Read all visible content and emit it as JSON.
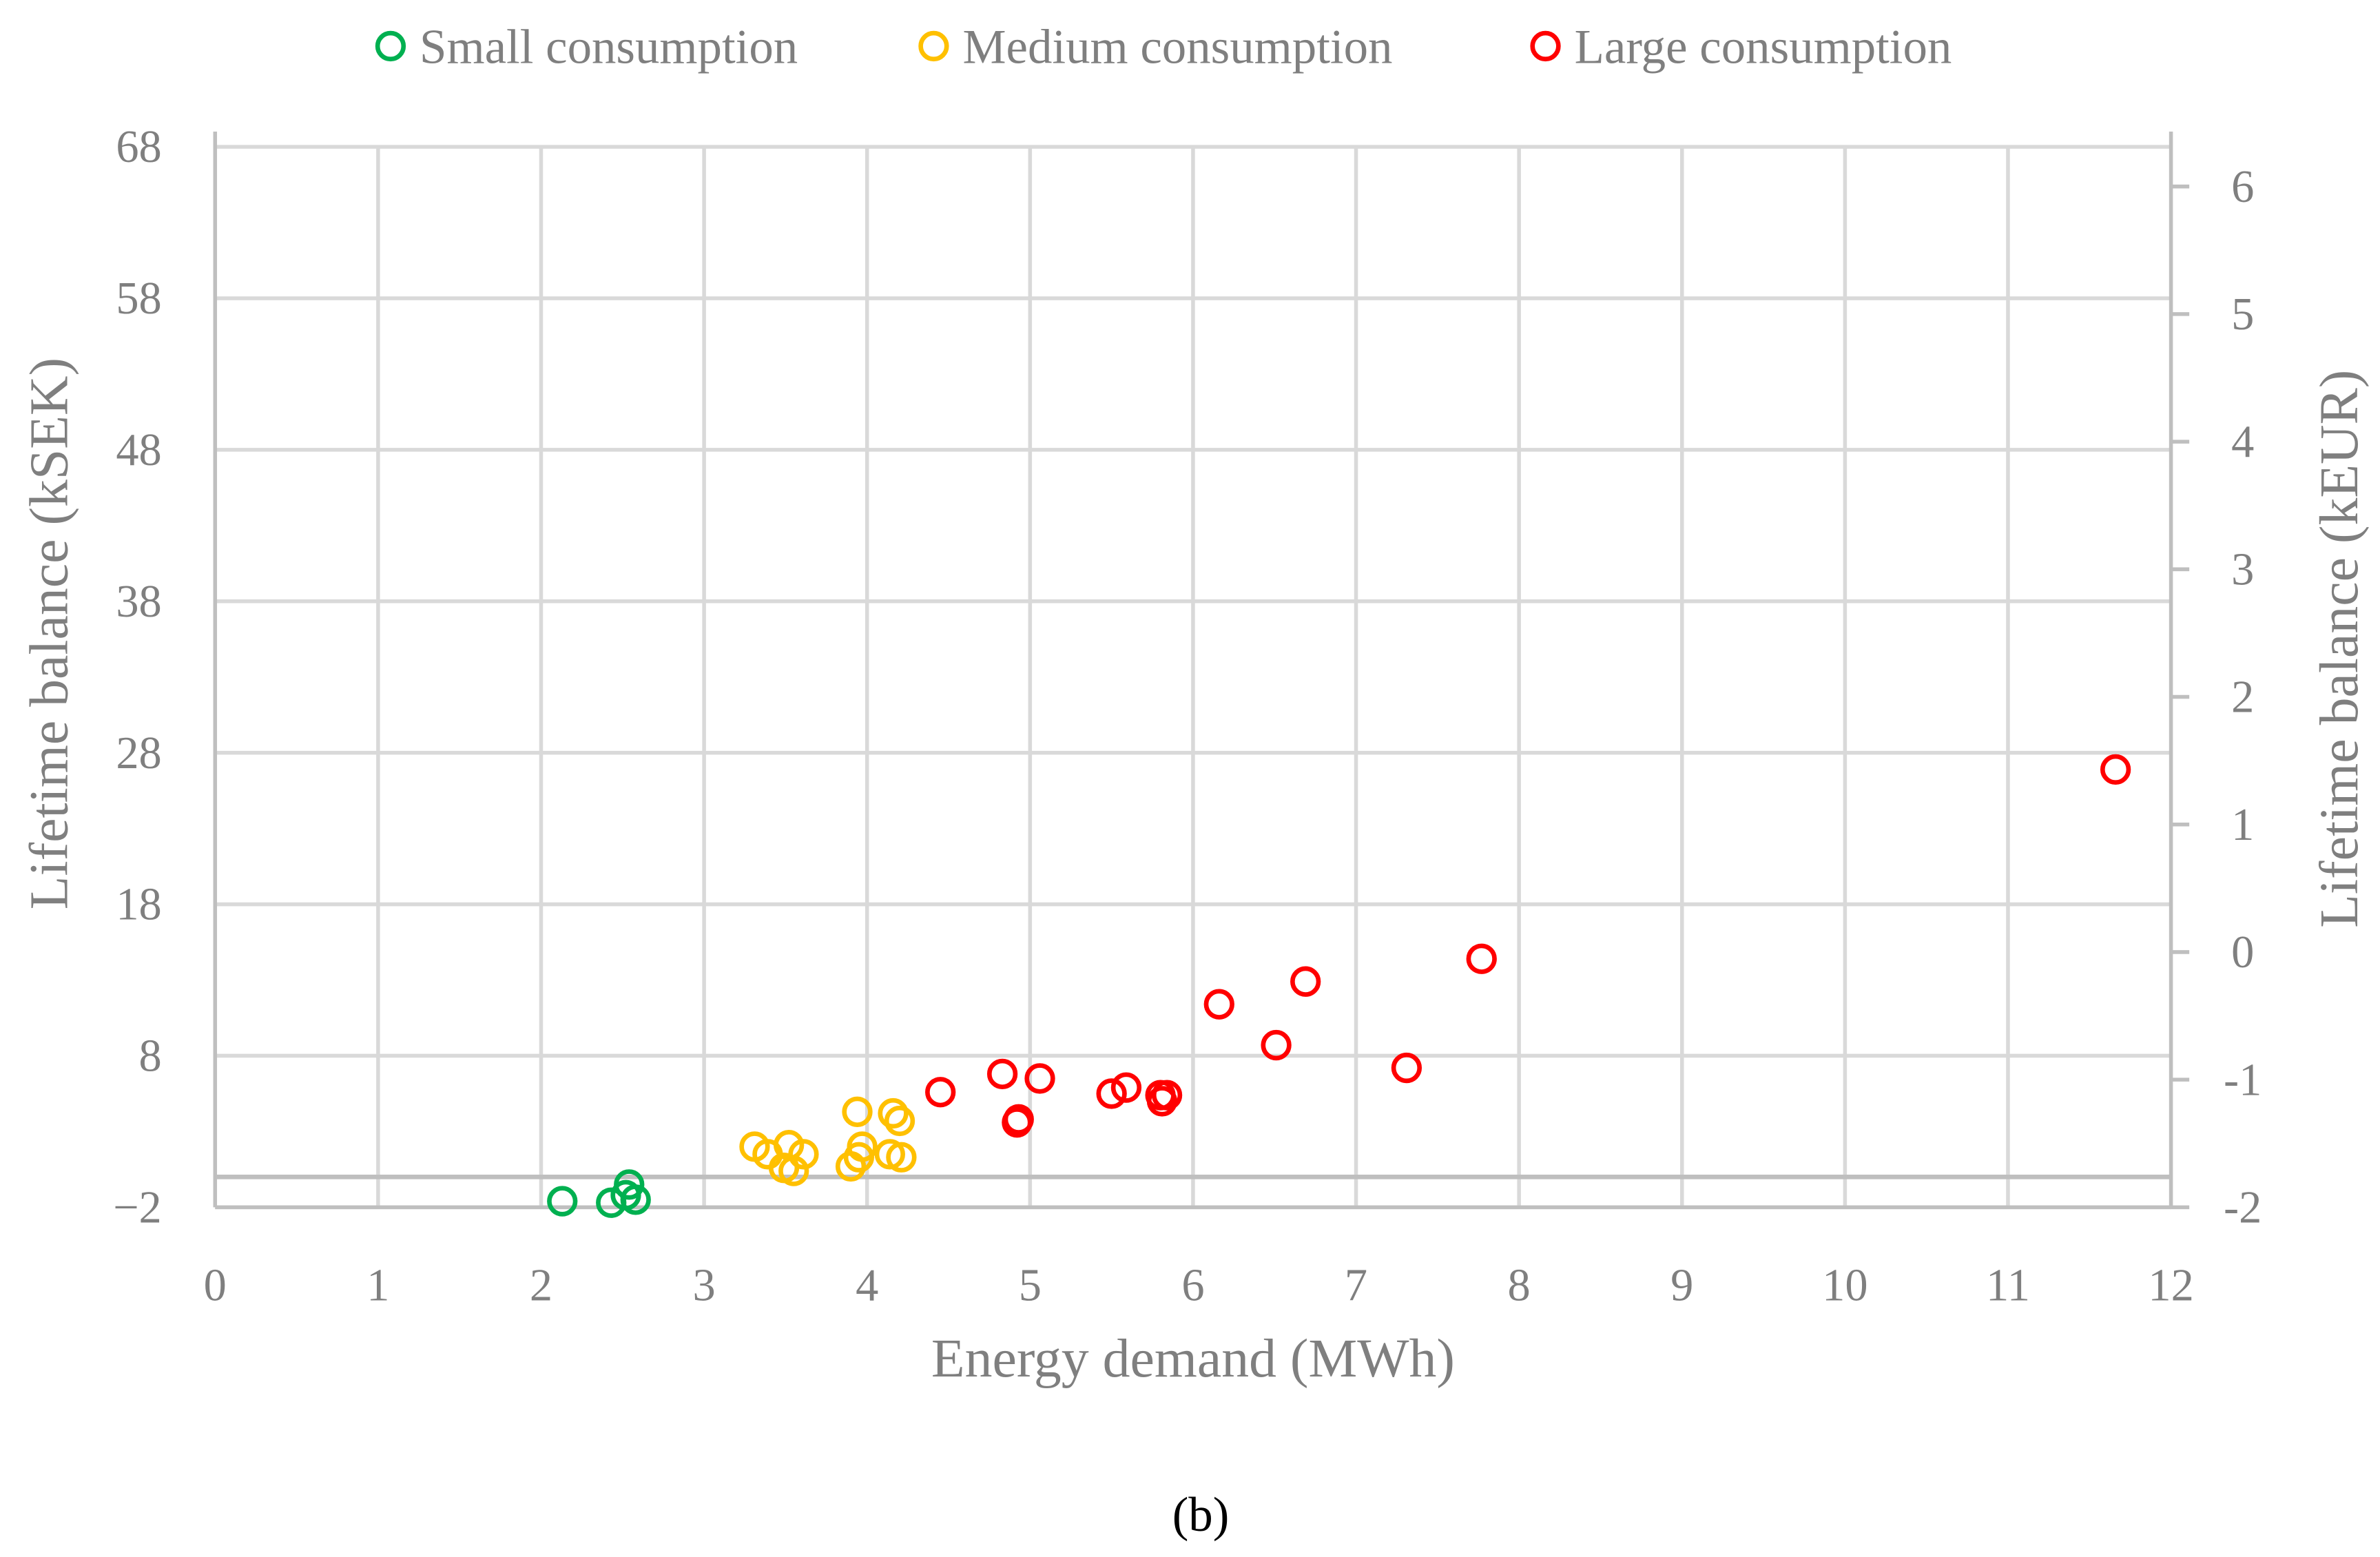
{
  "chart_data": {
    "type": "scatter",
    "caption": "(b)",
    "xlabel": "Energy demand (MWh)",
    "ylabel": "Lifetime balance (kSEK)",
    "y2label": "Lifetime balance (kEUR)",
    "xlim": [
      0,
      12
    ],
    "ylim": [
      -2,
      68
    ],
    "xticks": [
      "0",
      "1",
      "2",
      "3",
      "4",
      "5",
      "6",
      "7",
      "8",
      "9",
      "10",
      "11",
      "12"
    ],
    "yticks": [
      "68",
      "58",
      "48",
      "38",
      "28",
      "18",
      "8",
      "−2"
    ],
    "ytick_values": [
      68,
      58,
      48,
      38,
      28,
      18,
      8,
      -2
    ],
    "y2ticks": [
      "6",
      "5",
      "4",
      "3",
      "2",
      "1",
      "0",
      "-1",
      "-2"
    ],
    "y2tick_values": [
      6,
      5,
      4,
      3,
      2,
      1,
      0,
      -1,
      -2
    ],
    "y2lim": [
      -2,
      6.4
    ],
    "legend_position": "top",
    "grid": true,
    "series": [
      {
        "name": "Small consumption",
        "color": "#00b050",
        "x": [
          2.13,
          2.43,
          2.54,
          2.52,
          2.58
        ],
        "y": [
          -1.6,
          -1.7,
          -0.5,
          -1.2,
          -1.5
        ]
      },
      {
        "name": "Medium consumption",
        "color": "#ffc000",
        "x": [
          3.31,
          3.39,
          3.52,
          3.49,
          3.55,
          3.61,
          3.94,
          3.97,
          3.95,
          3.9,
          4.16,
          4.2,
          4.14,
          4.21
        ],
        "y": [
          2.0,
          1.5,
          2.1,
          0.6,
          0.4,
          1.5,
          4.3,
          2.0,
          1.3,
          0.7,
          4.2,
          3.7,
          1.5,
          1.3
        ]
      },
      {
        "name": "Large consumption",
        "color": "#ff0000",
        "x": [
          4.45,
          4.83,
          5.06,
          4.92,
          4.93,
          5.5,
          5.59,
          5.8,
          5.84,
          5.81,
          6.16,
          6.51,
          6.69,
          7.31,
          7.77,
          11.66
        ],
        "y": [
          5.6,
          6.8,
          6.5,
          3.6,
          3.8,
          5.5,
          5.9,
          5.4,
          5.4,
          5.0,
          11.4,
          8.7,
          12.9,
          7.2,
          14.4,
          26.9
        ]
      }
    ]
  }
}
